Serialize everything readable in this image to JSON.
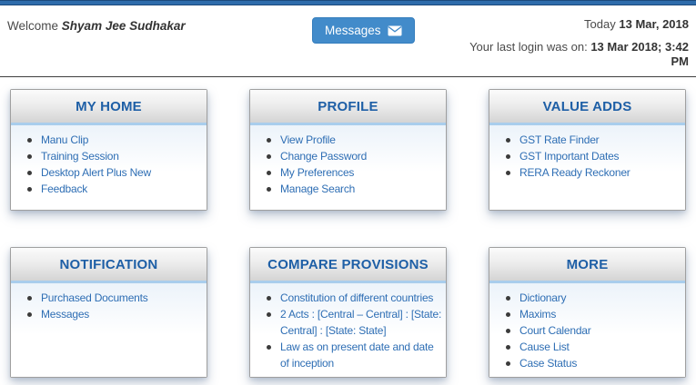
{
  "header": {
    "welcome_prefix": "Welcome",
    "user_name": "Shyam Jee Sudhakar",
    "messages_button": "Messages",
    "today_prefix": "Today",
    "today_date": "13 Mar, 2018",
    "last_login_prefix": "Your last login was on:",
    "last_login_value": "13 Mar 2018; 3:42 PM"
  },
  "icons": {
    "messages_button_icon": "envelope-icon"
  },
  "colors": {
    "accent_blue": "#428bca",
    "title_blue": "#1e5fa6",
    "link_blue": "#2e6eb4",
    "header_underline_blue": "#a9cdec",
    "top_strip_blue": "#2e6cab"
  },
  "panels": [
    {
      "title": "MY HOME",
      "items": [
        "Manu Clip",
        "Training Session",
        "Desktop Alert Plus New",
        "Feedback"
      ]
    },
    {
      "title": "PROFILE",
      "items": [
        "View Profile",
        "Change Password",
        "My Preferences",
        "Manage Search"
      ]
    },
    {
      "title": "VALUE ADDS",
      "items": [
        "GST Rate Finder",
        "GST Important Dates",
        "RERA Ready Reckoner"
      ]
    },
    {
      "title": "NOTIFICATION",
      "items": [
        "Purchased Documents",
        "Messages"
      ]
    },
    {
      "title": "COMPARE PROVISIONS",
      "items": [
        "Constitution of different countries",
        "2 Acts : [Central – Central] : [State: Central] : [State: State]",
        "Law as on present date and date of inception"
      ]
    },
    {
      "title": "MORE",
      "items": [
        "Dictionary",
        "Maxims",
        "Court Calendar",
        "Cause List",
        "Case Status"
      ]
    }
  ]
}
